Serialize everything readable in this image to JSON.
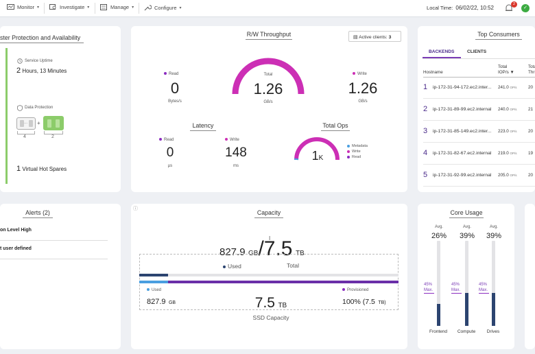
{
  "nav": {
    "items": [
      {
        "label": "Monitor",
        "icon": "monitor-icon"
      },
      {
        "label": "Investigate",
        "icon": "investigate-icon"
      },
      {
        "label": "Manage",
        "icon": "manage-icon"
      },
      {
        "label": "Configure",
        "icon": "configure-icon"
      }
    ],
    "local_time_label": "Local Time:",
    "local_time_value": "06/02/22, 10:52",
    "alert_count": "2",
    "status_icon": "check-icon"
  },
  "protection": {
    "title": "ster Protection and Availability",
    "uptime_label": "Service Uptime",
    "uptime_value_hours": "2",
    "uptime_value_text": " Hours, 13 Minutes",
    "data_protection_label": "Data Protection",
    "data_stripes": "4",
    "parity_stripes": "2",
    "plus": "+",
    "hot_spares_count": "1",
    "hot_spares_label": " Virtual Hot Spares",
    "colors": {
      "accent_green": "#8ccc6a"
    }
  },
  "throughput": {
    "title": "R/W Throughput",
    "active_clients_label": "Active clients:",
    "active_clients_value": "3",
    "read_label": "Read",
    "read_value": "0",
    "read_unit": "Bytes/s",
    "total_label": "Total",
    "total_value": "1.26",
    "total_unit": "GB/s",
    "write_label": "Write",
    "write_value": "1.26",
    "write_unit": "GB/s"
  },
  "latency": {
    "title": "Latency",
    "read_label": "Read",
    "read_value": "0",
    "read_unit": "µs",
    "write_label": "Write",
    "write_value": "148",
    "write_unit": "ms"
  },
  "total_ops": {
    "title": "Total Ops",
    "value": "1",
    "unit": "K",
    "legend": [
      "Metadata",
      "Write",
      "Read"
    ]
  },
  "top_consumers": {
    "title": "Top Consumers",
    "tabs": [
      "BACKENDS",
      "CLIENTS"
    ],
    "col_host": "Hostname",
    "col_iops_1": "Total",
    "col_iops_2": "IOP/s",
    "sort_indicator": "▼",
    "col_thr_1": "Total",
    "col_thr_2": "Thr",
    "rows": [
      {
        "rank": "1",
        "host": "ip-172-31-94-172.ec2.inter...",
        "iops": "241.0",
        "iops_unit": "OP/s",
        "thr": "20"
      },
      {
        "rank": "2",
        "host": "ip-172-31-89-99.ec2.internal",
        "iops": "240.0",
        "iops_unit": "OP/s",
        "thr": "21"
      },
      {
        "rank": "3",
        "host": "ip-172-31-85-149.ec2.inter...",
        "iops": "223.0",
        "iops_unit": "OP/s",
        "thr": "20"
      },
      {
        "rank": "4",
        "host": "ip-172-31-82-67.ec2.internal",
        "iops": "219.0",
        "iops_unit": "OP/s",
        "thr": "19"
      },
      {
        "rank": "5",
        "host": "ip-172-31-92-99.ec2.internal",
        "iops": "205.0",
        "iops_unit": "OP/s",
        "thr": "20"
      }
    ]
  },
  "alerts": {
    "title": "Alerts (2)",
    "items": [
      "on Level High",
      "t user defined"
    ]
  },
  "capacity": {
    "title": "Capacity",
    "used_value": "827.9",
    "used_unit": "GB",
    "total_value": "/7.5",
    "total_unit": "TB",
    "used_label": "Used",
    "total_label": "Total",
    "bottom_used_label": "Used",
    "bottom_used_value": "827.9",
    "bottom_used_unit": "GB",
    "ssd_value": "7.5",
    "ssd_unit": "TB",
    "ssd_label": "SSD Capacity",
    "provisioned_label": "Provisioned",
    "provisioned_value": "100% (7.5",
    "provisioned_unit": "TB)",
    "used_fraction": 0.11,
    "provisioned_fraction": 1.0,
    "colors": {
      "used": "#2c4470",
      "ssd_used": "#4a9fe0",
      "provisioned": "#6a2fa8"
    }
  },
  "core_usage": {
    "title": "Core Usage",
    "avg_label": "Avg.",
    "max_label": "Max.",
    "cores": [
      {
        "name": "Frontend",
        "avg": "26%",
        "max": "45%",
        "avg_fraction": 0.26,
        "max_fraction": 0.45
      },
      {
        "name": "Compute",
        "avg": "39%",
        "max": "45%",
        "avg_fraction": 0.39,
        "max_fraction": 0.45
      },
      {
        "name": "Drives",
        "avg": "39%",
        "max": "45%",
        "avg_fraction": 0.39,
        "max_fraction": 0.45
      }
    ]
  }
}
